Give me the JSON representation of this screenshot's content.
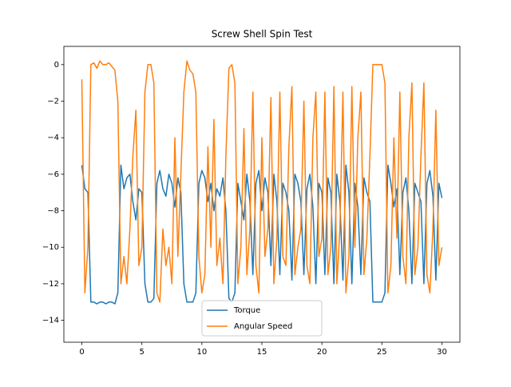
{
  "chart_data": {
    "type": "line",
    "title": "Screw Shell Spin Test",
    "x": [
      0,
      0.25,
      0.5,
      0.75,
      1,
      1.25,
      1.5,
      1.75,
      2,
      2.25,
      2.5,
      2.75,
      3,
      3.25,
      3.5,
      3.75,
      4,
      4.25,
      4.5,
      4.75,
      5,
      5.25,
      5.5,
      5.75,
      6,
      6.25,
      6.5,
      6.75,
      7,
      7.25,
      7.5,
      7.75,
      8,
      8.25,
      8.5,
      8.75,
      9,
      9.25,
      9.5,
      9.75,
      10,
      10.25,
      10.5,
      10.75,
      11,
      11.25,
      11.5,
      11.75,
      12,
      12.25,
      12.5,
      12.75,
      13,
      13.25,
      13.5,
      13.75,
      14,
      14.25,
      14.5,
      14.75,
      15,
      15.25,
      15.5,
      15.75,
      16,
      16.25,
      16.5,
      16.75,
      17,
      17.25,
      17.5,
      17.75,
      18,
      18.25,
      18.5,
      18.75,
      19,
      19.25,
      19.5,
      19.75,
      20,
      20.25,
      20.5,
      20.75,
      21,
      21.25,
      21.5,
      21.75,
      22,
      22.25,
      22.5,
      22.75,
      23,
      23.25,
      23.5,
      23.75,
      24,
      24.25,
      24.5,
      24.75,
      25,
      25.25,
      25.5,
      25.75,
      26,
      26.25,
      26.5,
      26.75,
      27,
      27.25,
      27.5,
      27.75,
      28,
      28.25,
      28.5,
      28.75,
      29,
      29.25,
      29.5,
      29.75,
      30
    ],
    "series": [
      {
        "name": "Torque",
        "color": "#1f77b4",
        "values": [
          -5.5,
          -6.8,
          -7,
          -13,
          -13,
          -13.1,
          -13,
          -13,
          -13.1,
          -13,
          -13,
          -13.1,
          -12.5,
          -5.5,
          -6.8,
          -6.2,
          -6,
          -7.5,
          -8.5,
          -6.8,
          -7,
          -12,
          -13,
          -13,
          -12.8,
          -6.5,
          -5.8,
          -6.8,
          -7.2,
          -6,
          -6.5,
          -7.8,
          -6.2,
          -7,
          -12,
          -13,
          -13,
          -13,
          -12.5,
          -6.5,
          -5.8,
          -6.2,
          -7.5,
          -6.5,
          -8,
          -6.8,
          -7.2,
          -6.2,
          -8,
          -12.8,
          -13,
          -12.5,
          -6.5,
          -7.5,
          -8.5,
          -6,
          -7.5,
          -11.5,
          -6.5,
          -5.8,
          -8,
          -6.2,
          -7,
          -11,
          -6,
          -7.5,
          -11.5,
          -6.5,
          -7,
          -8,
          -11.8,
          -6,
          -6.5,
          -7.5,
          -11.5,
          -6.8,
          -6,
          -7.8,
          -12,
          -6.5,
          -7,
          -11.5,
          -6.2,
          -7,
          -12,
          -6,
          -7.5,
          -11.8,
          -5.5,
          -7,
          -12,
          -6.5,
          -7.8,
          -11.5,
          -6.2,
          -7,
          -7.5,
          -13,
          -13,
          -13,
          -13,
          -12.5,
          -5.5,
          -6.5,
          -7.8,
          -6.8,
          -11.5,
          -7,
          -6.2,
          -8,
          -12,
          -6.5,
          -7,
          -7.5,
          -12,
          -6.5,
          -5.8,
          -7.2,
          -11.8,
          -6.5,
          -7.3
        ]
      },
      {
        "name": "Angular Speed",
        "color": "#ff7f0e",
        "values": [
          -0.8,
          -12.5,
          -10,
          0,
          0.1,
          -0.2,
          0.2,
          0,
          0,
          0.1,
          -0.1,
          -0.3,
          -2,
          -12,
          -10.5,
          -12,
          -9,
          -5,
          -2.5,
          -11,
          -10,
          -1.5,
          0,
          0,
          -1,
          -12.5,
          -13,
          -9,
          -11,
          -10,
          -12,
          -4,
          -10.5,
          -6,
          -1.5,
          0.2,
          -0.3,
          -0.5,
          -1.5,
          -10.5,
          -12.5,
          -11.5,
          -4.5,
          -10,
          -3,
          -11,
          -9.5,
          -12,
          -5,
          -0.2,
          0,
          -1,
          -12,
          -10,
          -3.5,
          -11.5,
          -9,
          -1.5,
          -11,
          -12.5,
          -4,
          -10.5,
          -9,
          -1.8,
          -12,
          -9.5,
          -1.5,
          -10.5,
          -11,
          -4.5,
          -1.2,
          -11.5,
          -10,
          -9,
          -2,
          -11,
          -12,
          -4,
          -1.5,
          -10.5,
          -9.5,
          -1.5,
          -11.5,
          -10,
          -1.2,
          -12,
          -9,
          -1.5,
          -12.5,
          -10.5,
          -1.2,
          -10,
          -4,
          -1.5,
          -11.5,
          -9.5,
          -5,
          0,
          0,
          0,
          0,
          -1,
          -12.5,
          -11,
          -4,
          -9.5,
          -1.5,
          -10.5,
          -12,
          -4,
          -1,
          -11.5,
          -10,
          -5,
          -1,
          -11.5,
          -12.5,
          -9,
          -2.5,
          -11,
          -10
        ]
      }
    ],
    "xlim": [
      -1.5,
      31.5
    ],
    "ylim": [
      -15.2,
      1.0
    ],
    "xticks": [
      0,
      5,
      10,
      15,
      20,
      25,
      30
    ],
    "yticks": [
      {
        "value": -14,
        "label": "−14"
      },
      {
        "value": -12,
        "label": "−12"
      },
      {
        "value": -10,
        "label": "−10"
      },
      {
        "value": -8,
        "label": "−8"
      },
      {
        "value": -6,
        "label": "−6"
      },
      {
        "value": -4,
        "label": "−4"
      },
      {
        "value": -2,
        "label": "−2"
      },
      0
    ],
    "legend": "lower center"
  }
}
